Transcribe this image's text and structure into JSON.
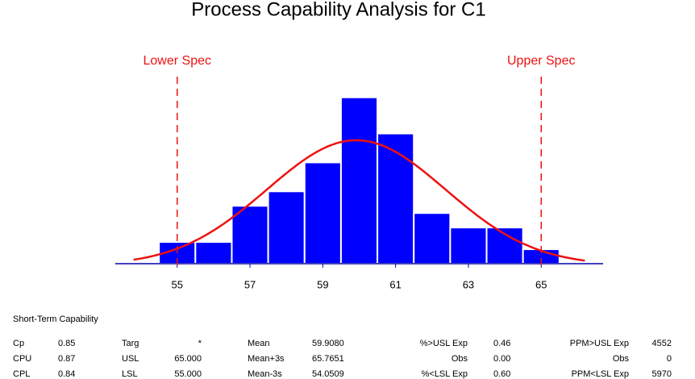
{
  "chart_data": {
    "type": "histogram",
    "title": "Process Capability Analysis for C1",
    "bins": [
      54.5,
      55.5,
      56.5,
      57.5,
      58.5,
      59.5,
      60.5,
      61.5,
      62.5,
      63.5,
      64.5,
      65.5
    ],
    "values": [
      3,
      3,
      8,
      10,
      14,
      23,
      18,
      7,
      5,
      5,
      2
    ],
    "color": "#0000ff",
    "curve_color": "#ee1111",
    "xlim": [
      53.3,
      66.7
    ],
    "xticks": [
      55,
      57,
      59,
      61,
      63,
      65
    ],
    "ylim": [
      0,
      32
    ],
    "spec_lines": [
      {
        "label": "Lower Spec",
        "value": 55
      },
      {
        "label": "Upper Spec",
        "value": 65
      }
    ],
    "spec_color": "#ee1111"
  },
  "table": {
    "title": "Short-Term Capability",
    "rows": [
      [
        "Cp",
        "0.85",
        "Targ",
        "*",
        "Mean",
        "59.9080",
        "%>USL Exp",
        "0.46",
        "PPM>USL Exp",
        "4552"
      ],
      [
        "CPU",
        "0.87",
        "USL",
        "65.000",
        "Mean+3s",
        "65.7651",
        "Obs",
        "0.00",
        "Obs",
        "0"
      ],
      [
        "CPL",
        "0.84",
        "LSL",
        "55.000",
        "Mean-3s",
        "54.0509",
        "%<LSL Exp",
        "0.60",
        "PPM<LSL Exp",
        "5970"
      ]
    ]
  }
}
